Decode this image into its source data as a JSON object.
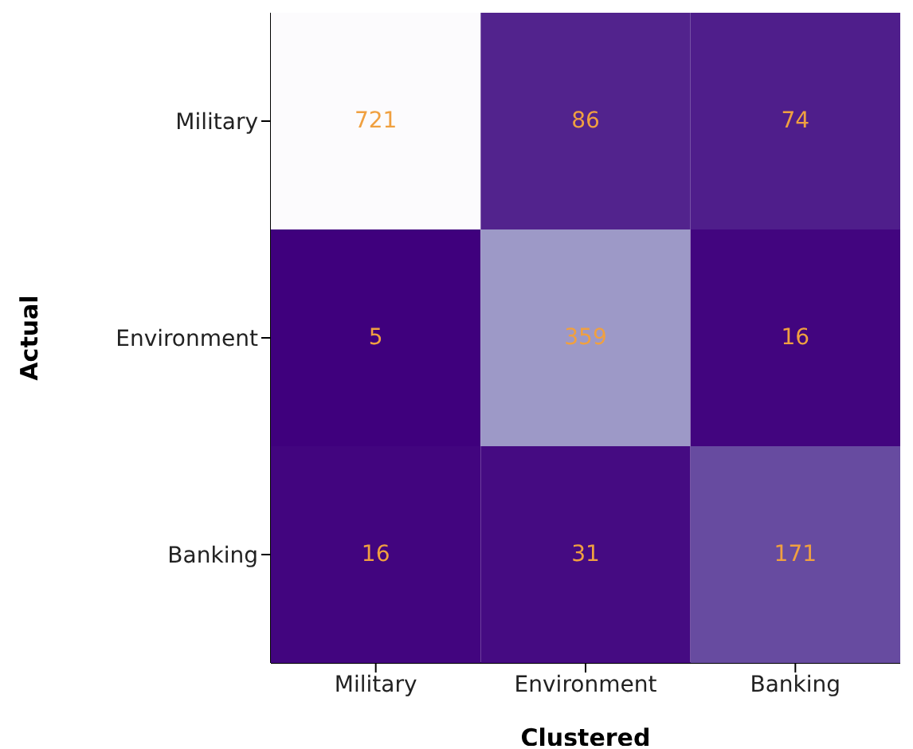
{
  "chart_data": {
    "type": "heatmap",
    "xlabel": "Clustered",
    "ylabel": "Actual",
    "categories": [
      "Military",
      "Environment",
      "Banking"
    ],
    "y_categories": [
      "Military",
      "Environment",
      "Banking"
    ],
    "cells": [
      [
        721,
        86,
        74
      ],
      [
        5,
        359,
        16
      ],
      [
        16,
        31,
        171
      ]
    ],
    "data_labels": true
  }
}
